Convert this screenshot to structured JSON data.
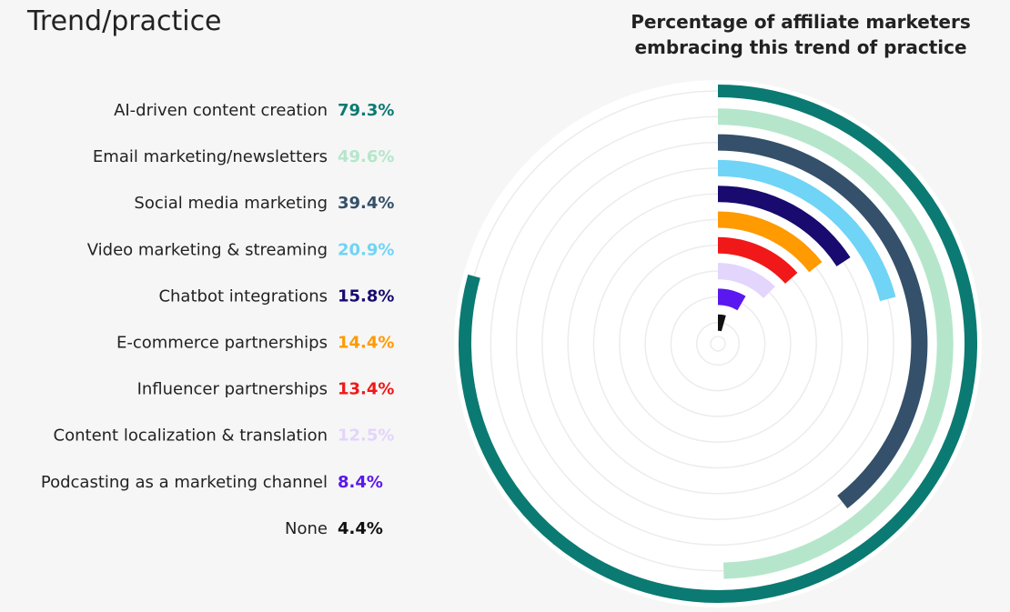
{
  "chart_data": {
    "type": "radial-bar",
    "left_title": "Trend/practice",
    "title": "Percentage of affiliate marketers embracing this trend of practice",
    "categories": [
      "AI-driven content creation",
      "Email marketing/newsletters",
      "Social media marketing",
      "Video marketing & streaming",
      "Chatbot integrations",
      "E-commerce partnerships",
      "Influencer partnerships",
      "Content localization & translation",
      "Podcasting as a marketing channel",
      "None"
    ],
    "values": [
      79.3,
      49.6,
      39.4,
      20.9,
      15.8,
      14.4,
      13.4,
      12.5,
      8.4,
      4.4
    ],
    "value_labels": [
      "79.3%",
      "49.6%",
      "39.4%",
      "20.9%",
      "15.8%",
      "14.4%",
      "13.4%",
      "12.5%",
      "8.4%",
      "4.4%"
    ],
    "colors": [
      "#0b7a72",
      "#b5e6cb",
      "#34506a",
      "#6fd4f6",
      "#180a6e",
      "#ff9a00",
      "#f01818",
      "#e3d5fb",
      "#5a17ef",
      "#111111"
    ],
    "xlim": [
      0,
      100
    ]
  }
}
